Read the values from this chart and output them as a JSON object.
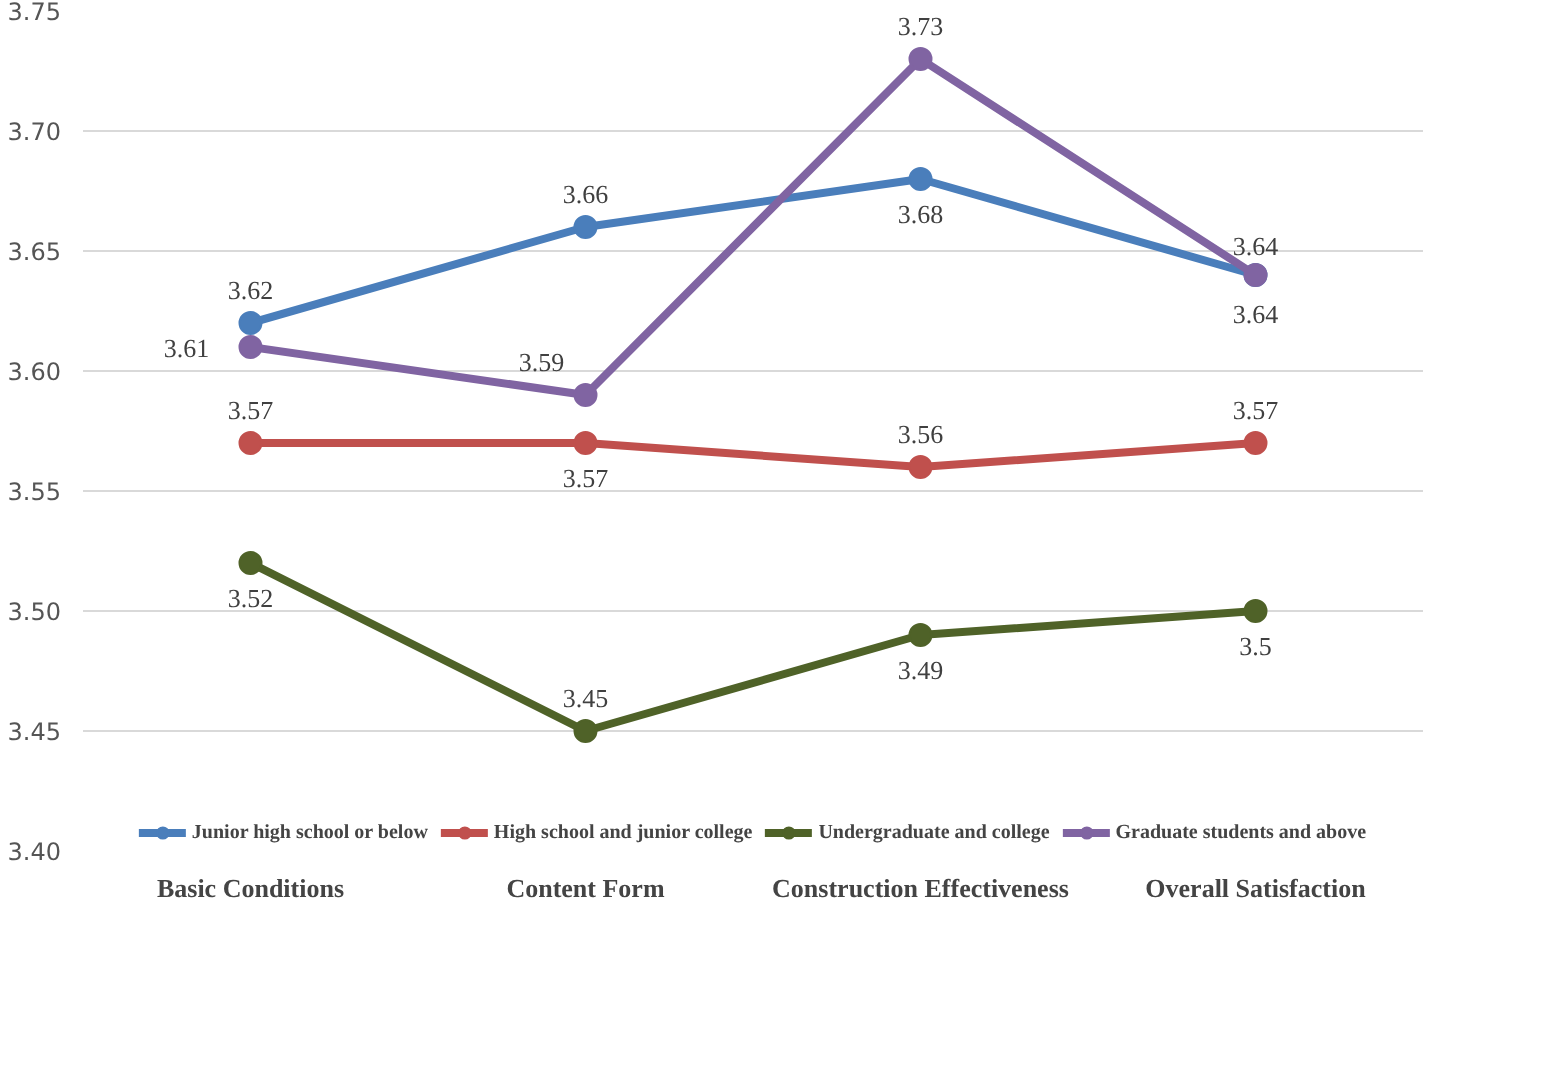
{
  "chart_data": {
    "type": "line",
    "categories": [
      "Basic Conditions",
      "Content Form",
      "Construction Effectiveness",
      "Overall Satisfaction"
    ],
    "series": [
      {
        "name": "Junior high school or below",
        "color": "#4a7ebb",
        "values": [
          3.62,
          3.66,
          3.68,
          3.64
        ]
      },
      {
        "name": "High school and junior college",
        "color": "#c0504d",
        "values": [
          3.57,
          3.57,
          3.56,
          3.57
        ]
      },
      {
        "name": "Undergraduate and college",
        "color": "#4f6228",
        "values": [
          3.52,
          3.45,
          3.49,
          3.5
        ]
      },
      {
        "name": "Graduate students and above",
        "color": "#8064a2",
        "values": [
          3.61,
          3.59,
          3.73,
          3.64
        ]
      }
    ],
    "ylim": [
      3.4,
      3.75
    ],
    "yticks": [
      {
        "value": 3.4,
        "label": "3.40"
      },
      3.45,
      {
        "value": 3.5,
        "label": "3.50"
      },
      3.55,
      {
        "value": 3.6,
        "label": "3.60"
      },
      3.65,
      {
        "value": 3.7,
        "label": "3.70"
      },
      3.75
    ],
    "grid": "y",
    "legend": "bottom",
    "marker": "circle",
    "line_style": "solid",
    "data_labels": true
  }
}
